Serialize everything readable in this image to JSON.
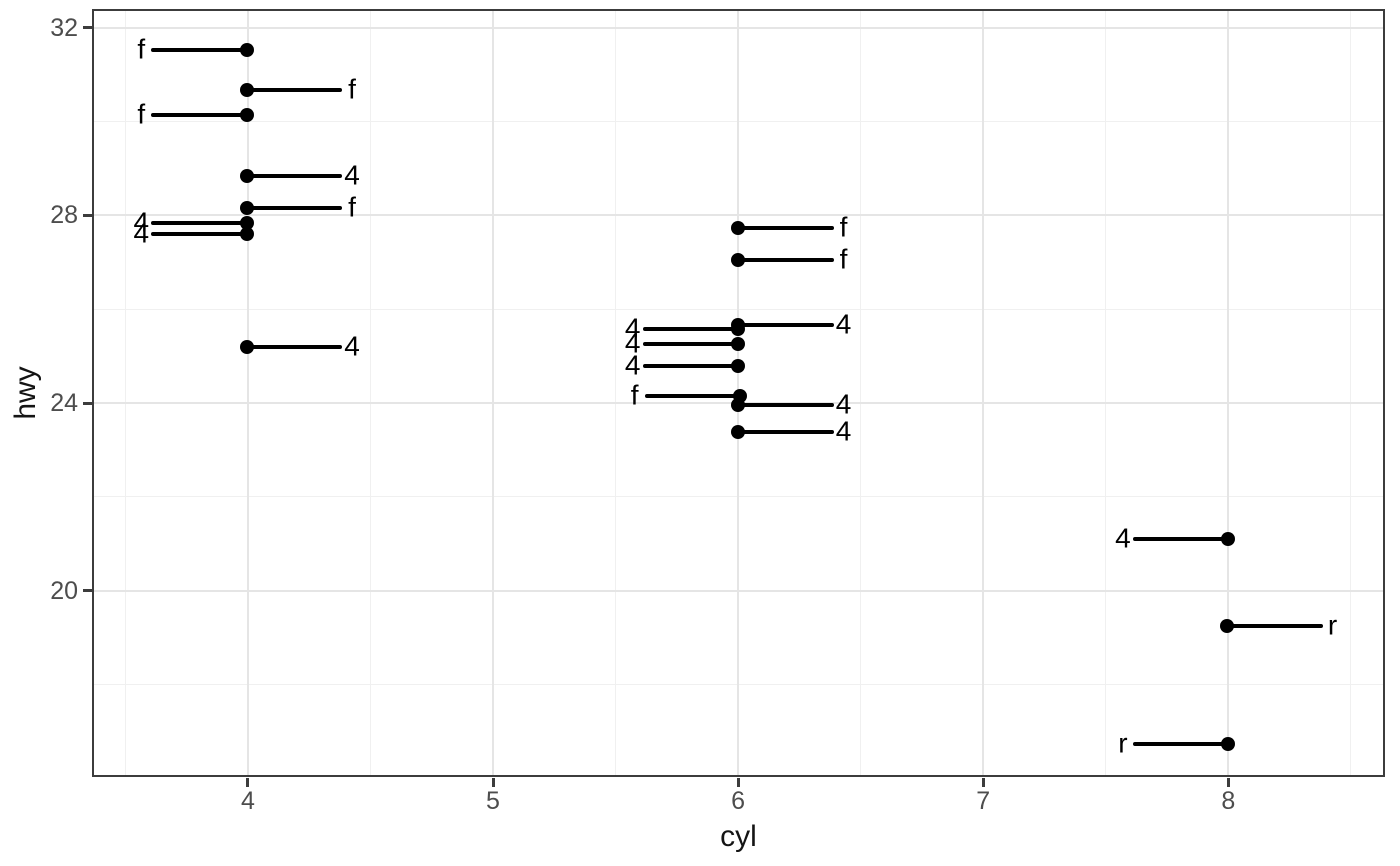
{
  "chart_data": {
    "type": "scatter",
    "title": "",
    "xlabel": "cyl",
    "ylabel": "hwy",
    "x_ticks": [
      4,
      5,
      6,
      7,
      8
    ],
    "y_ticks": [
      32,
      28,
      24,
      20
    ],
    "x_minor_gridlines": [
      3.5,
      4.5,
      5.5,
      6.5,
      7.5,
      8.5
    ],
    "y_minor_gridlines": [
      30,
      26,
      22,
      18
    ],
    "xlim": [
      3.364,
      8.639
    ],
    "ylim": [
      16.03,
      32.4
    ],
    "grid": "major+minor",
    "legend_position": "none",
    "label_nudge_x": 0.43,
    "points": [
      {
        "x": 3.995,
        "y": 31.53,
        "label": "f",
        "side": "left"
      },
      {
        "x": 3.995,
        "y": 30.67,
        "label": "f",
        "side": "right"
      },
      {
        "x": 3.995,
        "y": 30.15,
        "label": "f",
        "side": "left"
      },
      {
        "x": 3.995,
        "y": 28.85,
        "label": "4",
        "side": "right"
      },
      {
        "x": 3.995,
        "y": 28.16,
        "label": "f",
        "side": "right"
      },
      {
        "x": 3.995,
        "y": 27.84,
        "label": "4",
        "side": "left"
      },
      {
        "x": 3.995,
        "y": 27.61,
        "label": "4",
        "side": "left"
      },
      {
        "x": 3.995,
        "y": 25.19,
        "label": "4",
        "side": "right"
      },
      {
        "x": 6.0,
        "y": 27.74,
        "label": "f",
        "side": "right"
      },
      {
        "x": 6.0,
        "y": 27.06,
        "label": "f",
        "side": "right"
      },
      {
        "x": 6.0,
        "y": 25.67,
        "label": "4",
        "side": "right"
      },
      {
        "x": 6.0,
        "y": 25.58,
        "label": "4",
        "side": "left"
      },
      {
        "x": 6.0,
        "y": 25.26,
        "label": "4",
        "side": "left"
      },
      {
        "x": 6.0,
        "y": 24.78,
        "label": "4",
        "side": "left"
      },
      {
        "x": 6.008,
        "y": 24.16,
        "label": "f",
        "side": "left"
      },
      {
        "x": 6.0,
        "y": 23.95,
        "label": "4",
        "side": "right"
      },
      {
        "x": 6.0,
        "y": 23.39,
        "label": "4",
        "side": "right"
      },
      {
        "x": 8.0,
        "y": 21.1,
        "label": "4",
        "side": "left"
      },
      {
        "x": 7.995,
        "y": 19.25,
        "label": "r",
        "side": "right"
      },
      {
        "x": 8.0,
        "y": 16.74,
        "label": "r",
        "side": "left"
      }
    ]
  },
  "colors": {
    "background": "#ffffff",
    "panel_border": "#3c3c3c",
    "grid_major": "#e5e5e5",
    "grid_minor": "#f0f0f0",
    "point": "#000000",
    "segment": "#000000",
    "point_label": "#000000",
    "tick_mark": "#3c3c3c",
    "tick_label": "#4d4d4d",
    "axis_title": "#141414"
  }
}
